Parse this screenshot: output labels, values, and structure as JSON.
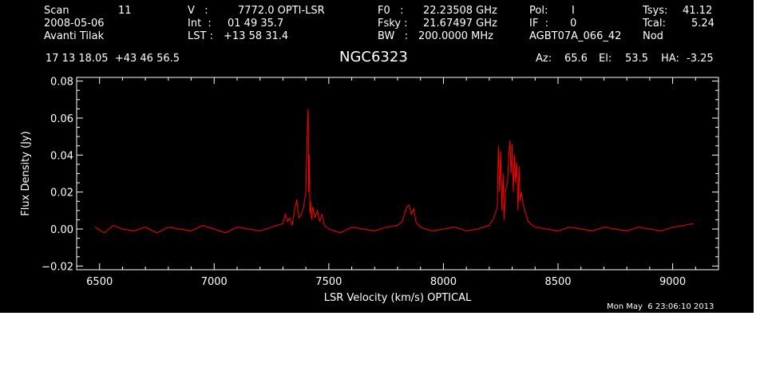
{
  "header": {
    "scan_label": "Scan",
    "scan_value": "11",
    "date": "2008-05-06",
    "observer": "Avanti Tilak",
    "v_label": "V   :",
    "v_value": "7772.0 OPTI-LSR",
    "int_label": "Int  :",
    "int_value": "01 49 35.7",
    "lst_label": "LST :",
    "lst_value": "+13 58 31.4",
    "f0_label": "F0   :",
    "f0_value": "22.23508 GHz",
    "fsky_label": "Fsky :",
    "fsky_value": "21.67497 GHz",
    "bw_label": "BW   :",
    "bw_value": "200.0000 MHz",
    "pol_label": "Pol:",
    "pol_value": "I",
    "if_label": "IF  :",
    "if_value": "0",
    "project": "AGBT07A_066_42",
    "tsys_label": "Tsys:",
    "tsys_value": "41.12",
    "tcal_label": "Tcal:",
    "tcal_value": "5.24",
    "nod": "Nod",
    "coords": "17 13 18.05  +43 46 56.5",
    "source": "NGC6323",
    "az_label": "Az:",
    "az_value": "65.6",
    "el_label": "El:",
    "el_value": "53.5",
    "ha_label": "HA:",
    "ha_value": "-3.25"
  },
  "timestamp": "Mon May  6 23:06:10 2013",
  "colors": {
    "background": "#000000",
    "axes": "#ffffff",
    "spectrum": "#ff0000"
  },
  "chart_data": {
    "type": "line",
    "xlabel": "LSR Velocity (km/s) OPTICAL",
    "ylabel": "Flux Density (Jy)",
    "xlim": [
      6400,
      9200
    ],
    "ylim": [
      -0.022,
      0.082
    ],
    "xticks": [
      6500,
      7000,
      7500,
      8000,
      8500,
      9000
    ],
    "xtick_labels": [
      "6500",
      "7000",
      "7500",
      "8000",
      "8500",
      "9000"
    ],
    "yticks": [
      -0.02,
      0.0,
      0.02,
      0.04,
      0.06,
      0.08
    ],
    "ytick_labels": [
      "−0.02",
      "0.00",
      "0.02",
      "0.04",
      "0.06",
      "0.08"
    ],
    "grid": false,
    "series": [
      {
        "x": [
          6480,
          6520,
          6560,
          6600,
          6650,
          6700,
          6750,
          6800,
          6850,
          6900,
          6950,
          7000,
          7050,
          7100,
          7150,
          7200,
          7250,
          7300,
          7310,
          7320,
          7330,
          7340,
          7350,
          7360,
          7370,
          7380,
          7390,
          7400,
          7405,
          7410,
          7412,
          7415,
          7418,
          7420,
          7425,
          7430,
          7440,
          7450,
          7460,
          7470,
          7480,
          7500,
          7550,
          7600,
          7650,
          7700,
          7750,
          7800,
          7820,
          7840,
          7850,
          7860,
          7870,
          7880,
          7900,
          7950,
          8000,
          8050,
          8100,
          8150,
          8200,
          8220,
          8235,
          8240,
          8245,
          8250,
          8255,
          8260,
          8265,
          8270,
          8280,
          8285,
          8290,
          8295,
          8300,
          8305,
          8310,
          8315,
          8320,
          8325,
          8330,
          8335,
          8340,
          8350,
          8360,
          8370,
          8400,
          8450,
          8500,
          8550,
          8600,
          8650,
          8700,
          8750,
          8800,
          8850,
          8900,
          8950,
          9000,
          9050,
          9090
        ],
        "y": [
          0.001,
          -0.002,
          0.002,
          0.0,
          -0.001,
          0.001,
          -0.002,
          0.001,
          0.0,
          -0.001,
          0.002,
          0.0,
          -0.002,
          0.001,
          0.0,
          -0.001,
          0.001,
          0.003,
          0.008,
          0.004,
          0.006,
          0.002,
          0.01,
          0.016,
          0.006,
          0.008,
          0.012,
          0.02,
          0.05,
          0.065,
          0.02,
          0.04,
          0.008,
          0.015,
          0.005,
          0.012,
          0.006,
          0.01,
          0.004,
          0.008,
          0.002,
          0.0,
          -0.002,
          0.001,
          0.0,
          -0.001,
          0.001,
          0.002,
          0.004,
          0.012,
          0.013,
          0.008,
          0.011,
          0.004,
          0.001,
          -0.001,
          0.0,
          0.001,
          -0.001,
          0.0,
          0.002,
          0.006,
          0.012,
          0.045,
          0.02,
          0.042,
          0.01,
          0.03,
          0.005,
          0.02,
          0.026,
          0.04,
          0.048,
          0.03,
          0.046,
          0.02,
          0.04,
          0.025,
          0.036,
          0.01,
          0.034,
          0.015,
          0.02,
          0.012,
          0.008,
          0.004,
          0.001,
          0.0,
          -0.001,
          0.001,
          0.0,
          -0.001,
          0.001,
          0.0,
          -0.001,
          0.001,
          0.0,
          -0.001,
          0.001,
          0.002,
          0.003
        ]
      }
    ]
  }
}
